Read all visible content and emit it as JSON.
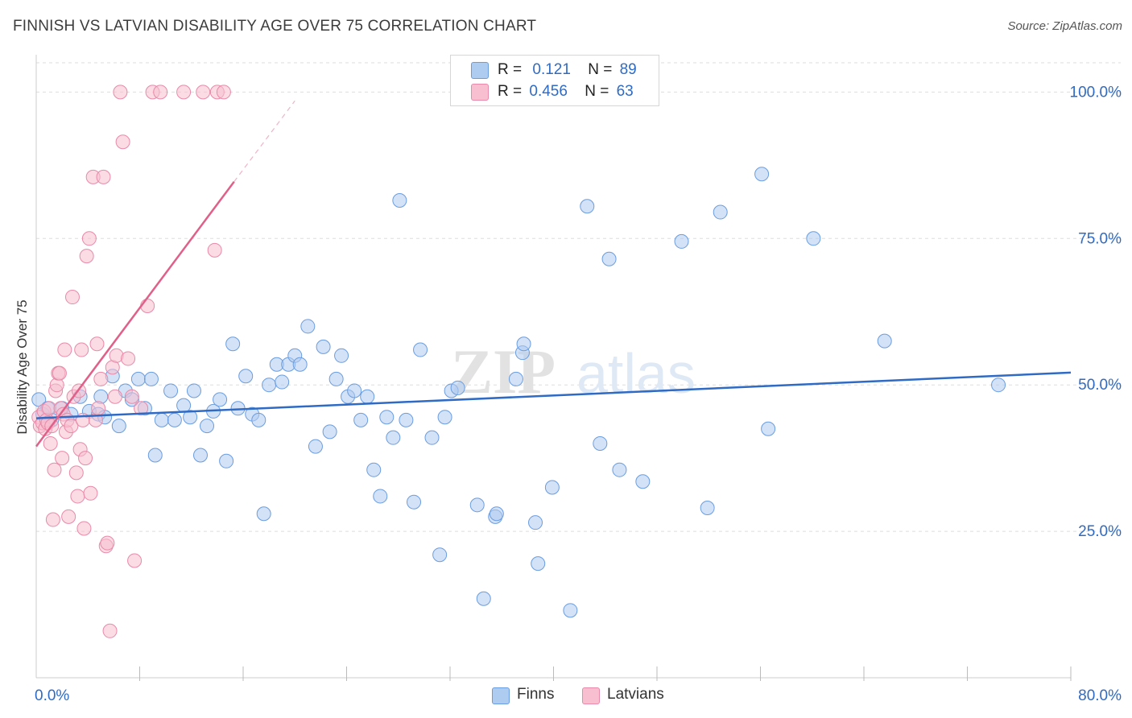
{
  "header": {
    "title": "FINNISH VS LATVIAN DISABILITY AGE OVER 75 CORRELATION CHART",
    "source": "Source: ZipAtlas.com"
  },
  "watermark": {
    "zip": "ZIP",
    "atlas": "atlas"
  },
  "legend": {
    "finns": {
      "r_label": "R =",
      "r_value": "0.121",
      "n_label": "N =",
      "n_value": "89"
    },
    "latvians": {
      "r_label": "R =",
      "r_value": "0.456",
      "n_label": "N =",
      "n_value": "63"
    }
  },
  "bottom_legend": {
    "finns": "Finns",
    "latvians": "Latvians"
  },
  "colors": {
    "finns_fill": "#aecbf0",
    "finns_stroke": "#6a9de0",
    "finns_line": "#2f6bc4",
    "latvians_fill": "#f7bfd0",
    "latvians_stroke": "#e88aa9",
    "latvians_line": "#e0608a",
    "tick_label": "#2f6bc4",
    "grid": "#dddddd"
  },
  "chart_data": {
    "type": "scatter",
    "title": "FINNISH VS LATVIAN DISABILITY AGE OVER 75 CORRELATION CHART",
    "xlabel": "",
    "ylabel": "Disability Age Over 75",
    "xlim": [
      0,
      80
    ],
    "ylim": [
      0,
      105
    ],
    "x_tick_labels": [
      {
        "value": 0,
        "label": "0.0%"
      },
      {
        "value": 80,
        "label": "80.0%"
      }
    ],
    "y_tick_labels": [
      {
        "value": 100,
        "label": "100.0%"
      },
      {
        "value": 75,
        "label": "75.0%"
      },
      {
        "value": 50,
        "label": "50.0%"
      },
      {
        "value": 25,
        "label": "25.0%"
      }
    ],
    "x_minor_ticks": [
      8,
      16,
      24,
      32,
      40,
      48,
      56,
      64,
      72,
      80
    ],
    "series": [
      {
        "name": "Finns",
        "r": 0.121,
        "n": 89,
        "trend": {
          "x": [
            0,
            80
          ],
          "y": [
            44.3,
            52.1
          ]
        },
        "points": [
          [
            0.2,
            47.5
          ],
          [
            0.5,
            45
          ],
          [
            0.9,
            46
          ],
          [
            1.2,
            44
          ],
          [
            2,
            46
          ],
          [
            2.7,
            45
          ],
          [
            3.4,
            48
          ],
          [
            4.1,
            45.5
          ],
          [
            4.8,
            45
          ],
          [
            5,
            48
          ],
          [
            5.3,
            44.5
          ],
          [
            5.9,
            51.5
          ],
          [
            6.4,
            43
          ],
          [
            6.9,
            49
          ],
          [
            7.4,
            47.5
          ],
          [
            7.9,
            51
          ],
          [
            8.4,
            46
          ],
          [
            8.9,
            51
          ],
          [
            9.2,
            38
          ],
          [
            9.7,
            44
          ],
          [
            10.4,
            49
          ],
          [
            10.7,
            44
          ],
          [
            11.4,
            46.5
          ],
          [
            11.9,
            44.5
          ],
          [
            12.2,
            49
          ],
          [
            12.7,
            38
          ],
          [
            13.2,
            43
          ],
          [
            13.7,
            45.5
          ],
          [
            14.2,
            47.5
          ],
          [
            14.7,
            37
          ],
          [
            15.2,
            57
          ],
          [
            15.6,
            46
          ],
          [
            16.2,
            51.5
          ],
          [
            16.7,
            45
          ],
          [
            17.2,
            44
          ],
          [
            17.6,
            28
          ],
          [
            18,
            50
          ],
          [
            18.6,
            53.5
          ],
          [
            19,
            50.5
          ],
          [
            19.5,
            53.5
          ],
          [
            20,
            55
          ],
          [
            20.4,
            53.5
          ],
          [
            21,
            60
          ],
          [
            21.6,
            39.5
          ],
          [
            22.2,
            56.5
          ],
          [
            22.7,
            42
          ],
          [
            23.2,
            51
          ],
          [
            23.6,
            55
          ],
          [
            24.1,
            48
          ],
          [
            24.6,
            49
          ],
          [
            25.1,
            44
          ],
          [
            25.6,
            48
          ],
          [
            26.1,
            35.5
          ],
          [
            26.6,
            31
          ],
          [
            27.1,
            44.5
          ],
          [
            27.6,
            41
          ],
          [
            28.1,
            81.5
          ],
          [
            28.6,
            44
          ],
          [
            29.2,
            30
          ],
          [
            29.7,
            56
          ],
          [
            30.6,
            41
          ],
          [
            31.2,
            21
          ],
          [
            31.6,
            44.5
          ],
          [
            32.1,
            49
          ],
          [
            32.6,
            49.5
          ],
          [
            34.1,
            29.5
          ],
          [
            34.6,
            13.5
          ],
          [
            35.5,
            27.5
          ],
          [
            35.6,
            28
          ],
          [
            37.1,
            51
          ],
          [
            37.6,
            55.5
          ],
          [
            37.7,
            57
          ],
          [
            38.6,
            26.5
          ],
          [
            38.8,
            19.5
          ],
          [
            39.9,
            32.5
          ],
          [
            41.3,
            11.5
          ],
          [
            42.6,
            80.5
          ],
          [
            43.6,
            40
          ],
          [
            44.3,
            71.5
          ],
          [
            45.1,
            35.5
          ],
          [
            46.9,
            33.5
          ],
          [
            49.9,
            74.5
          ],
          [
            51.9,
            29
          ],
          [
            52.9,
            79.5
          ],
          [
            56.1,
            86
          ],
          [
            56.6,
            42.5
          ],
          [
            60.1,
            75
          ],
          [
            65.6,
            57.5
          ],
          [
            74.4,
            50
          ]
        ]
      },
      {
        "name": "Latvians",
        "r": 0.456,
        "n": 63,
        "trend": {
          "x": [
            0,
            15.3
          ],
          "y": [
            39.5,
            84.7
          ]
        },
        "trend_dashed": {
          "x": [
            15.3,
            20
          ],
          "y": [
            84.7,
            98.5
          ]
        },
        "points": [
          [
            0.2,
            44.5
          ],
          [
            0.3,
            43
          ],
          [
            0.5,
            43.5
          ],
          [
            0.6,
            45.5
          ],
          [
            0.7,
            42.5
          ],
          [
            0.8,
            44
          ],
          [
            0.9,
            43.5
          ],
          [
            1,
            46
          ],
          [
            1.1,
            40
          ],
          [
            1.2,
            43
          ],
          [
            1.3,
            27
          ],
          [
            1.4,
            35.5
          ],
          [
            1.5,
            49
          ],
          [
            1.6,
            50
          ],
          [
            1.7,
            52
          ],
          [
            1.8,
            52
          ],
          [
            1.9,
            46
          ],
          [
            2,
            37.5
          ],
          [
            2.1,
            45
          ],
          [
            2.2,
            56
          ],
          [
            2.3,
            42
          ],
          [
            2.4,
            44
          ],
          [
            2.5,
            27.5
          ],
          [
            2.7,
            43
          ],
          [
            2.8,
            65
          ],
          [
            2.9,
            48
          ],
          [
            3.1,
            35
          ],
          [
            3.2,
            31
          ],
          [
            3.3,
            49
          ],
          [
            3.4,
            39
          ],
          [
            3.5,
            56
          ],
          [
            3.6,
            44
          ],
          [
            3.7,
            25.5
          ],
          [
            3.8,
            37.5
          ],
          [
            3.9,
            72
          ],
          [
            4.1,
            75
          ],
          [
            4.2,
            31.5
          ],
          [
            4.4,
            85.5
          ],
          [
            4.6,
            44
          ],
          [
            4.7,
            57
          ],
          [
            4.8,
            46
          ],
          [
            5,
            51
          ],
          [
            5.2,
            85.5
          ],
          [
            5.4,
            22.5
          ],
          [
            5.5,
            23
          ],
          [
            5.7,
            8
          ],
          [
            5.9,
            53
          ],
          [
            6.1,
            48
          ],
          [
            6.2,
            55
          ],
          [
            6.5,
            100
          ],
          [
            6.7,
            91.5
          ],
          [
            7.1,
            54.5
          ],
          [
            7.4,
            48
          ],
          [
            7.6,
            20
          ],
          [
            8.1,
            46
          ],
          [
            8.6,
            63.5
          ],
          [
            9,
            100
          ],
          [
            9.6,
            100
          ],
          [
            11.4,
            100
          ],
          [
            12.9,
            100
          ],
          [
            13.8,
            73
          ],
          [
            14,
            100
          ],
          [
            14.5,
            100
          ]
        ]
      }
    ]
  }
}
